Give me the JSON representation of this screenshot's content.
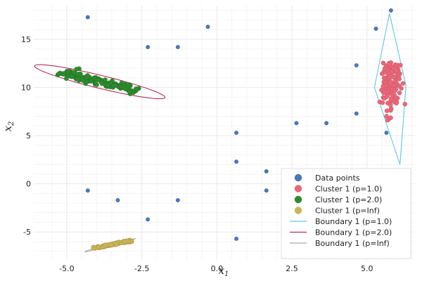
{
  "chart_data": {
    "type": "scatter",
    "title": "",
    "xlabel": "x",
    "xlabel_sub": "1",
    "ylabel": "x",
    "ylabel_sub": "2",
    "xlim": [
      -6.1,
      6.6
    ],
    "ylim": [
      -7.9,
      18.5
    ],
    "xticks": [
      -5.0,
      -2.5,
      0.0,
      2.5,
      5.0
    ],
    "xtick_labels": [
      "-5.0",
      "-2.5",
      "0.0",
      "2.5",
      "5.0"
    ],
    "yticks": [
      -5,
      0,
      5,
      10,
      15
    ],
    "ytick_labels": [
      "-5",
      "0",
      "5",
      "10",
      "15"
    ],
    "grid": true,
    "legend_position": "bottom-right",
    "colors": {
      "data_points": "#4a78b0",
      "cluster_p1": "#e8687a",
      "cluster_p2": "#2e8b2e",
      "cluster_pinf": "#c8b45a",
      "boundary_p1": "#5fc9e0",
      "boundary_p2": "#b0305a",
      "boundary_pinf": "#aaaaaa"
    },
    "series": [
      {
        "name": "Data points",
        "kind": "scatter",
        "color_key": "data_points",
        "points": [
          [
            -4.3,
            17.3
          ],
          [
            -2.3,
            14.2
          ],
          [
            -1.3,
            14.2
          ],
          [
            -0.3,
            16.3
          ],
          [
            5.3,
            16.1
          ],
          [
            4.65,
            12.3
          ],
          [
            4.65,
            7.3
          ],
          [
            3.65,
            6.3
          ],
          [
            2.65,
            6.3
          ],
          [
            0.65,
            5.3
          ],
          [
            0.65,
            2.3
          ],
          [
            1.65,
            1.3
          ],
          [
            1.65,
            -0.7
          ],
          [
            -4.3,
            -0.7
          ],
          [
            -3.3,
            -1.7
          ],
          [
            -1.3,
            -1.7
          ],
          [
            -2.3,
            -3.7
          ],
          [
            0.65,
            -5.7
          ],
          [
            5.65,
            5.3
          ],
          [
            5.8,
            18.0
          ]
        ]
      },
      {
        "name": "Cluster 1 (p=1.0)",
        "kind": "cluster",
        "color_key": "cluster_p1",
        "center": [
          5.8,
          10.2
        ],
        "spread": [
          0.25,
          2.3
        ],
        "count": 150,
        "seed": 7
      },
      {
        "name": "Cluster 1 (p=2.0)",
        "kind": "cluster-rotated",
        "color_key": "cluster_p2",
        "center": [
          -3.9,
          10.6
        ],
        "half_length": 1.6,
        "half_width": 0.35,
        "slope": -0.8,
        "count": 150,
        "seed": 11
      },
      {
        "name": "Cluster 1 (p=Inf)",
        "kind": "cluster-rotated",
        "color_key": "cluster_pinf",
        "center": [
          -3.5,
          -6.3
        ],
        "half_length": 0.75,
        "half_width": 0.08,
        "slope": 0.6,
        "count": 120,
        "seed": 23
      },
      {
        "name": "Boundary 1 (p=1.0)",
        "kind": "line",
        "color_key": "boundary_p1",
        "points": [
          [
            5.75,
            17.7
          ],
          [
            6.3,
            10.2
          ],
          [
            6.1,
            2.0
          ],
          [
            5.25,
            10.0
          ],
          [
            5.75,
            17.7
          ]
        ]
      },
      {
        "name": "Boundary 1 (p=2.0)",
        "kind": "ellipse",
        "color_key": "boundary_p2",
        "center": [
          -3.9,
          10.6
        ],
        "rotation_slope": -0.8,
        "semi_major": 2.75,
        "semi_minor": 0.55
      },
      {
        "name": "Boundary 1 (p=Inf)",
        "kind": "line",
        "color_key": "boundary_pinf",
        "points": [
          [
            -4.4,
            -7.1
          ],
          [
            -2.7,
            -5.7
          ],
          [
            -2.85,
            -5.75
          ],
          [
            -4.35,
            -6.95
          ],
          [
            -4.4,
            -7.1
          ]
        ]
      }
    ]
  }
}
